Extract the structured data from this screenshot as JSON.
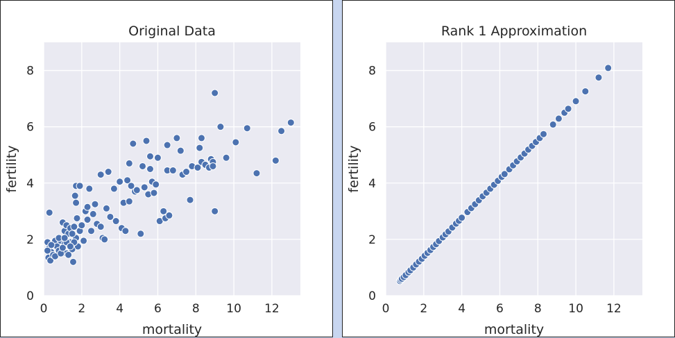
{
  "chart_data": [
    {
      "type": "scatter",
      "title": "Original Data",
      "xlabel": "mortality",
      "ylabel": "fertility",
      "xlim": [
        0,
        13.5
      ],
      "ylim": [
        0,
        9
      ],
      "xticks": [
        0,
        2,
        4,
        6,
        8,
        10,
        12
      ],
      "yticks": [
        0,
        2,
        4,
        6,
        8
      ],
      "grid": true,
      "background": "#eaeaf2",
      "point_color": "#4c72b0",
      "points": [
        [
          0.3,
          2.95
        ],
        [
          0.2,
          1.9
        ],
        [
          0.3,
          1.7
        ],
        [
          0.4,
          1.55
        ],
        [
          0.25,
          1.35
        ],
        [
          0.35,
          1.25
        ],
        [
          0.5,
          1.85
        ],
        [
          0.6,
          1.95
        ],
        [
          0.7,
          1.75
        ],
        [
          0.5,
          1.45
        ],
        [
          0.8,
          1.6
        ],
        [
          0.9,
          1.95
        ],
        [
          1.0,
          2.6
        ],
        [
          1.1,
          2.3
        ],
        [
          1.2,
          2.5
        ],
        [
          1.1,
          1.85
        ],
        [
          1.3,
          2.2
        ],
        [
          1.2,
          1.5
        ],
        [
          1.4,
          1.9
        ],
        [
          1.4,
          2.4
        ],
        [
          1.5,
          1.65
        ],
        [
          1.6,
          2.45
        ],
        [
          1.55,
          1.2
        ],
        [
          1.7,
          2.05
        ],
        [
          1.75,
          2.75
        ],
        [
          1.7,
          3.3
        ],
        [
          1.65,
          3.55
        ],
        [
          1.7,
          3.9
        ],
        [
          1.9,
          3.9
        ],
        [
          1.8,
          1.75
        ],
        [
          1.9,
          2.3
        ],
        [
          2.0,
          2.5
        ],
        [
          2.1,
          1.95
        ],
        [
          2.2,
          3.0
        ],
        [
          2.3,
          3.15
        ],
        [
          2.3,
          2.7
        ],
        [
          2.4,
          3.8
        ],
        [
          2.5,
          2.3
        ],
        [
          2.6,
          2.9
        ],
        [
          2.7,
          3.25
        ],
        [
          2.8,
          2.55
        ],
        [
          3.0,
          2.45
        ],
        [
          3.0,
          4.3
        ],
        [
          3.1,
          2.05
        ],
        [
          3.2,
          2.0
        ],
        [
          3.3,
          3.1
        ],
        [
          3.4,
          4.4
        ],
        [
          3.5,
          2.8
        ],
        [
          3.7,
          3.8
        ],
        [
          3.8,
          2.65
        ],
        [
          4.0,
          4.05
        ],
        [
          4.1,
          2.4
        ],
        [
          4.2,
          3.3
        ],
        [
          4.3,
          2.3
        ],
        [
          4.4,
          4.1
        ],
        [
          4.5,
          4.7
        ],
        [
          4.5,
          3.35
        ],
        [
          4.6,
          3.9
        ],
        [
          4.7,
          5.4
        ],
        [
          4.8,
          3.7
        ],
        [
          4.9,
          3.75
        ],
        [
          5.1,
          2.2
        ],
        [
          5.2,
          4.6
        ],
        [
          5.3,
          3.85
        ],
        [
          5.4,
          5.5
        ],
        [
          5.5,
          3.6
        ],
        [
          5.6,
          4.5
        ],
        [
          5.6,
          4.95
        ],
        [
          5.7,
          4.05
        ],
        [
          5.8,
          3.65
        ],
        [
          5.9,
          3.95
        ],
        [
          6.0,
          4.9
        ],
        [
          6.1,
          2.65
        ],
        [
          6.3,
          3.0
        ],
        [
          6.4,
          2.75
        ],
        [
          6.5,
          5.35
        ],
        [
          6.5,
          4.45
        ],
        [
          6.6,
          2.85
        ],
        [
          6.8,
          4.45
        ],
        [
          7.0,
          5.6
        ],
        [
          7.2,
          5.15
        ],
        [
          7.3,
          4.3
        ],
        [
          7.5,
          4.4
        ],
        [
          7.7,
          3.4
        ],
        [
          7.8,
          4.6
        ],
        [
          8.1,
          4.55
        ],
        [
          8.2,
          5.25
        ],
        [
          8.3,
          5.6
        ],
        [
          8.3,
          4.75
        ],
        [
          8.5,
          4.65
        ],
        [
          8.7,
          4.55
        ],
        [
          8.8,
          4.85
        ],
        [
          8.9,
          4.75
        ],
        [
          8.9,
          4.6
        ],
        [
          9.0,
          3.0
        ],
        [
          9.0,
          7.2
        ],
        [
          9.3,
          6.0
        ],
        [
          9.6,
          4.9
        ],
        [
          10.1,
          5.45
        ],
        [
          10.7,
          5.95
        ],
        [
          11.2,
          4.35
        ],
        [
          12.2,
          4.8
        ],
        [
          12.5,
          5.85
        ],
        [
          13.0,
          6.15
        ],
        [
          0.2,
          1.6
        ],
        [
          0.4,
          1.8
        ],
        [
          0.6,
          1.4
        ],
        [
          0.9,
          1.5
        ],
        [
          1.0,
          1.7
        ],
        [
          1.2,
          1.9
        ],
        [
          1.3,
          1.45
        ],
        [
          1.5,
          2.2
        ],
        [
          1.6,
          1.9
        ],
        [
          0.8,
          2.05
        ],
        [
          1.1,
          2.05
        ],
        [
          1.4,
          1.75
        ]
      ]
    },
    {
      "type": "scatter",
      "title": "Rank 1 Approximation",
      "xlabel": "mortality",
      "ylabel": "fertility",
      "xlim": [
        0,
        13.5
      ],
      "ylim": [
        0,
        9
      ],
      "xticks": [
        0,
        2,
        4,
        6,
        8,
        10,
        12
      ],
      "yticks": [
        0,
        2,
        4,
        6,
        8
      ],
      "grid": true,
      "background": "#eaeaf2",
      "point_color": "#4c72b0",
      "points": [
        [
          0.75,
          0.52
        ],
        [
          0.8,
          0.56
        ],
        [
          0.85,
          0.6
        ],
        [
          0.95,
          0.66
        ],
        [
          1.05,
          0.73
        ],
        [
          1.2,
          0.83
        ],
        [
          1.3,
          0.9
        ],
        [
          1.45,
          1.0
        ],
        [
          1.6,
          1.11
        ],
        [
          1.75,
          1.21
        ],
        [
          1.9,
          1.31
        ],
        [
          2.05,
          1.42
        ],
        [
          2.2,
          1.52
        ],
        [
          2.35,
          1.62
        ],
        [
          2.5,
          1.73
        ],
        [
          2.65,
          1.83
        ],
        [
          2.8,
          1.94
        ],
        [
          3.0,
          2.07
        ],
        [
          3.15,
          2.18
        ],
        [
          3.3,
          2.28
        ],
        [
          3.5,
          2.42
        ],
        [
          3.7,
          2.56
        ],
        [
          3.85,
          2.66
        ],
        [
          4.0,
          2.77
        ],
        [
          4.3,
          2.97
        ],
        [
          4.5,
          3.11
        ],
        [
          4.7,
          3.25
        ],
        [
          4.9,
          3.39
        ],
        [
          5.1,
          3.53
        ],
        [
          5.3,
          3.66
        ],
        [
          5.5,
          3.8
        ],
        [
          5.7,
          3.94
        ],
        [
          5.9,
          4.08
        ],
        [
          6.1,
          4.22
        ],
        [
          6.25,
          4.32
        ],
        [
          6.5,
          4.49
        ],
        [
          6.7,
          4.63
        ],
        [
          6.9,
          4.77
        ],
        [
          7.1,
          4.91
        ],
        [
          7.3,
          5.05
        ],
        [
          7.5,
          5.19
        ],
        [
          7.7,
          5.32
        ],
        [
          7.9,
          5.46
        ],
        [
          8.1,
          5.6
        ],
        [
          8.3,
          5.74
        ],
        [
          8.8,
          6.08
        ],
        [
          9.1,
          6.29
        ],
        [
          9.4,
          6.5
        ],
        [
          9.6,
          6.64
        ],
        [
          10.0,
          6.91
        ],
        [
          10.5,
          7.26
        ],
        [
          11.2,
          7.75
        ],
        [
          11.7,
          8.09
        ]
      ]
    }
  ]
}
